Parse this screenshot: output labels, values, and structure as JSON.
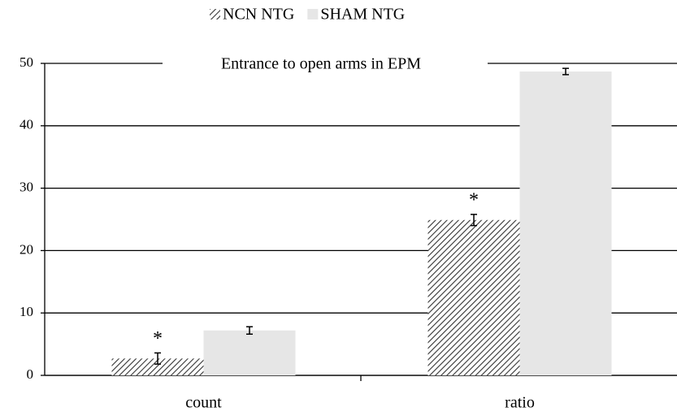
{
  "chart_data": {
    "type": "bar",
    "title": "Entrance to open arms in EPM",
    "categories": [
      "count",
      "ratio"
    ],
    "series": [
      {
        "name": "NCN NTG",
        "color": "#333333",
        "hatch": true,
        "values": [
          2.7,
          24.9
        ],
        "errors": [
          0.9,
          0.9
        ]
      },
      {
        "name": "SHAM NTG",
        "color": "#e6e6e6",
        "hatch": false,
        "values": [
          7.2,
          48.7
        ],
        "errors": [
          0.6,
          0.5
        ]
      }
    ],
    "annotations": [
      "*",
      "*"
    ],
    "ylim": [
      0,
      50
    ],
    "yticks": [
      0,
      10,
      20,
      30,
      40,
      50
    ],
    "grid": true,
    "legend": "top"
  }
}
